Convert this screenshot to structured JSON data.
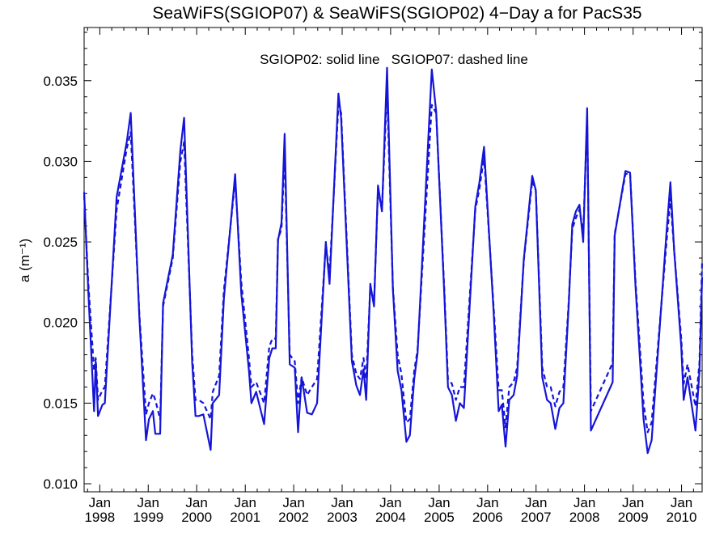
{
  "chart_data": {
    "type": "line",
    "title": "SeaWiFS(SGIOP07) & SeaWiFS(SGIOP02) 4−Day a for PacS35",
    "annotation": "SGIOP02: solid line   SGIOP07: dashed line",
    "ylabel": "a (m⁻¹)",
    "xlabel": "",
    "ylim": [
      0.0095,
      0.0383
    ],
    "xlim": [
      "1997-09-05",
      "2010-06-05"
    ],
    "yticks": [
      "0.010",
      "0.015",
      "0.020",
      "0.025",
      "0.030",
      "0.035"
    ],
    "ytick_values": [
      0.01,
      0.015,
      0.02,
      0.025,
      0.03,
      0.035
    ],
    "xticks": [
      {
        "month": "Jan",
        "year": "1998",
        "date": "1998-01-01"
      },
      {
        "month": "Jan",
        "year": "1999",
        "date": "1999-01-01"
      },
      {
        "month": "Jan",
        "year": "2000",
        "date": "2000-01-01"
      },
      {
        "month": "Jan",
        "year": "2001",
        "date": "2001-01-01"
      },
      {
        "month": "Jan",
        "year": "2002",
        "date": "2002-01-01"
      },
      {
        "month": "Jan",
        "year": "2003",
        "date": "2003-01-01"
      },
      {
        "month": "Jan",
        "year": "2004",
        "date": "2004-01-01"
      },
      {
        "month": "Jan",
        "year": "2005",
        "date": "2005-01-01"
      },
      {
        "month": "Jan",
        "year": "2006",
        "date": "2006-01-01"
      },
      {
        "month": "Jan",
        "year": "2007",
        "date": "2007-01-01"
      },
      {
        "month": "Jan",
        "year": "2008",
        "date": "2008-01-01"
      },
      {
        "month": "Jan",
        "year": "2009",
        "date": "2009-01-01"
      },
      {
        "month": "Jan",
        "year": "2010",
        "date": "2010-01-01"
      }
    ],
    "grid": false,
    "series": [
      {
        "name": "SGIOP02",
        "style": "solid",
        "color": "#1515d8",
        "points": [
          [
            "1997-09-05",
            0.0281
          ],
          [
            "1997-10-06",
            0.022
          ],
          [
            "1997-11-19",
            0.0145
          ],
          [
            "1997-12-01",
            0.0176
          ],
          [
            "1997-12-19",
            0.0142
          ],
          [
            "1998-01-21",
            0.0149
          ],
          [
            "1998-02-08",
            0.015
          ],
          [
            "1998-05-08",
            0.0278
          ],
          [
            "1998-07-23",
            0.0312
          ],
          [
            "1998-08-22",
            0.033
          ],
          [
            "1998-10-26",
            0.0203
          ],
          [
            "1998-12-15",
            0.0127
          ],
          [
            "1999-01-06",
            0.014
          ],
          [
            "1999-02-05",
            0.0145
          ],
          [
            "1999-02-23",
            0.0131
          ],
          [
            "1999-04-01",
            0.0131
          ],
          [
            "1999-04-23",
            0.0212
          ],
          [
            "1999-07-05",
            0.0242
          ],
          [
            "1999-08-31",
            0.0307
          ],
          [
            "1999-09-28",
            0.0327
          ],
          [
            "1999-11-28",
            0.0175
          ],
          [
            "1999-12-23",
            0.0142
          ],
          [
            "2000-01-16",
            0.0142
          ],
          [
            "2000-02-20",
            0.0143
          ],
          [
            "2000-04-15",
            0.0121
          ],
          [
            "2000-05-01",
            0.015
          ],
          [
            "2000-06-18",
            0.0155
          ],
          [
            "2000-07-24",
            0.0215
          ],
          [
            "2000-10-17",
            0.0292
          ],
          [
            "2000-12-02",
            0.0218
          ],
          [
            "2001-01-29",
            0.017
          ],
          [
            "2001-02-16",
            0.015
          ],
          [
            "2001-03-24",
            0.0157
          ],
          [
            "2001-05-23",
            0.0137
          ],
          [
            "2001-07-01",
            0.0178
          ],
          [
            "2001-07-24",
            0.0184
          ],
          [
            "2001-08-19",
            0.0184
          ],
          [
            "2001-09-05",
            0.0251
          ],
          [
            "2001-10-01",
            0.0262
          ],
          [
            "2001-10-25",
            0.0317
          ],
          [
            "2001-12-02",
            0.0174
          ],
          [
            "2002-01-09",
            0.0172
          ],
          [
            "2002-02-03",
            0.0132
          ],
          [
            "2002-03-02",
            0.0166
          ],
          [
            "2002-04-12",
            0.0144
          ],
          [
            "2002-05-18",
            0.0143
          ],
          [
            "2002-06-26",
            0.015
          ],
          [
            "2002-08-31",
            0.025
          ],
          [
            "2002-09-28",
            0.0224
          ],
          [
            "2002-12-04",
            0.0342
          ],
          [
            "2002-12-24",
            0.0327
          ],
          [
            "2003-03-15",
            0.0176
          ],
          [
            "2003-04-18",
            0.0161
          ],
          [
            "2003-05-15",
            0.0155
          ],
          [
            "2003-06-11",
            0.0171
          ],
          [
            "2003-07-01",
            0.0152
          ],
          [
            "2003-08-01",
            0.0224
          ],
          [
            "2003-08-29",
            0.021
          ],
          [
            "2003-09-28",
            0.0285
          ],
          [
            "2003-10-28",
            0.0269
          ],
          [
            "2003-12-05",
            0.0358
          ],
          [
            "2004-01-18",
            0.0221
          ],
          [
            "2004-02-23",
            0.017
          ],
          [
            "2004-03-23",
            0.0158
          ],
          [
            "2004-04-29",
            0.0126
          ],
          [
            "2004-05-25",
            0.013
          ],
          [
            "2004-06-27",
            0.0165
          ],
          [
            "2004-07-22",
            0.0181
          ],
          [
            "2004-11-06",
            0.0357
          ],
          [
            "2004-12-09",
            0.0331
          ],
          [
            "2005-02-10",
            0.0215
          ],
          [
            "2005-03-08",
            0.016
          ],
          [
            "2005-04-07",
            0.0155
          ],
          [
            "2005-05-07",
            0.0139
          ],
          [
            "2005-06-06",
            0.015
          ],
          [
            "2005-07-06",
            0.0147
          ],
          [
            "2005-09-30",
            0.0272
          ],
          [
            "2005-10-31",
            0.0287
          ],
          [
            "2005-12-05",
            0.0309
          ],
          [
            "2006-02-15",
            0.0207
          ],
          [
            "2006-03-25",
            0.0145
          ],
          [
            "2006-04-18",
            0.0149
          ],
          [
            "2006-05-16",
            0.0123
          ],
          [
            "2006-06-13",
            0.0152
          ],
          [
            "2006-07-16",
            0.0155
          ],
          [
            "2006-08-11",
            0.0167
          ],
          [
            "2006-09-30",
            0.0239
          ],
          [
            "2006-12-03",
            0.0291
          ],
          [
            "2006-12-30",
            0.0282
          ],
          [
            "2007-02-17",
            0.0166
          ],
          [
            "2007-03-25",
            0.0152
          ],
          [
            "2007-04-21",
            0.015
          ],
          [
            "2007-05-26",
            0.0134
          ],
          [
            "2007-06-26",
            0.0147
          ],
          [
            "2007-07-26",
            0.015
          ],
          [
            "2007-09-04",
            0.0211
          ],
          [
            "2007-10-01",
            0.0261
          ],
          [
            "2007-10-28",
            0.0269
          ],
          [
            "2007-11-24",
            0.0273
          ],
          [
            "2007-12-22",
            0.025
          ],
          [
            "2008-01-21",
            0.0333
          ],
          [
            "2008-02-18",
            0.0133
          ],
          [
            "2008-07-31",
            0.0163
          ],
          [
            "2008-08-15",
            0.0254
          ],
          [
            "2008-11-04",
            0.0294
          ],
          [
            "2008-12-09",
            0.0293
          ],
          [
            "2009-01-19",
            0.0223
          ],
          [
            "2009-03-21",
            0.014
          ],
          [
            "2009-04-21",
            0.0119
          ],
          [
            "2009-05-21",
            0.0127
          ],
          [
            "2009-09-10",
            0.0256
          ],
          [
            "2009-10-09",
            0.0287
          ],
          [
            "2009-11-06",
            0.0245
          ],
          [
            "2009-12-30",
            0.0185
          ],
          [
            "2010-01-17",
            0.0152
          ],
          [
            "2010-02-15",
            0.0166
          ],
          [
            "2010-04-16",
            0.0133
          ],
          [
            "2010-05-16",
            0.017
          ],
          [
            "2010-06-05",
            0.0228
          ]
        ]
      },
      {
        "name": "SGIOP07",
        "style": "dashed",
        "color": "#1515d8",
        "points": [
          [
            "1997-09-05",
            0.0279
          ],
          [
            "1997-10-06",
            0.0225
          ],
          [
            "1997-11-19",
            0.017
          ],
          [
            "1997-12-01",
            0.0178
          ],
          [
            "1997-12-19",
            0.0152
          ],
          [
            "1998-01-21",
            0.0158
          ],
          [
            "1998-02-08",
            0.016
          ],
          [
            "1998-05-08",
            0.027
          ],
          [
            "1998-07-23",
            0.0308
          ],
          [
            "1998-08-22",
            0.0318
          ],
          [
            "1998-10-26",
            0.0205
          ],
          [
            "1998-12-15",
            0.0143
          ],
          [
            "1999-01-06",
            0.015
          ],
          [
            "1999-02-05",
            0.0156
          ],
          [
            "1999-02-23",
            0.0152
          ],
          [
            "1999-04-01",
            0.014
          ],
          [
            "1999-04-23",
            0.021
          ],
          [
            "1999-07-05",
            0.024
          ],
          [
            "1999-08-31",
            0.03
          ],
          [
            "1999-09-28",
            0.0312
          ],
          [
            "1999-11-28",
            0.018
          ],
          [
            "1999-12-23",
            0.0152
          ],
          [
            "2000-01-16",
            0.0152
          ],
          [
            "2000-02-20",
            0.015
          ],
          [
            "2000-04-15",
            0.014
          ],
          [
            "2000-05-01",
            0.0157
          ],
          [
            "2000-06-18",
            0.0167
          ],
          [
            "2000-07-24",
            0.022
          ],
          [
            "2000-10-17",
            0.0288
          ],
          [
            "2000-12-02",
            0.0225
          ],
          [
            "2001-01-29",
            0.0178
          ],
          [
            "2001-02-16",
            0.016
          ],
          [
            "2001-03-24",
            0.0163
          ],
          [
            "2001-05-23",
            0.015
          ],
          [
            "2001-07-01",
            0.0185
          ],
          [
            "2001-07-24",
            0.019
          ],
          [
            "2001-08-19",
            0.019
          ],
          [
            "2001-09-05",
            0.0252
          ],
          [
            "2001-10-01",
            0.0258
          ],
          [
            "2001-10-25",
            0.0305
          ],
          [
            "2001-12-02",
            0.018
          ],
          [
            "2002-01-09",
            0.0176
          ],
          [
            "2002-02-03",
            0.015
          ],
          [
            "2002-03-02",
            0.0166
          ],
          [
            "2002-04-12",
            0.0155
          ],
          [
            "2002-05-18",
            0.016
          ],
          [
            "2002-06-26",
            0.0165
          ],
          [
            "2002-08-31",
            0.0248
          ],
          [
            "2002-09-28",
            0.023
          ],
          [
            "2002-12-04",
            0.0335
          ],
          [
            "2002-12-24",
            0.033
          ],
          [
            "2003-03-15",
            0.018
          ],
          [
            "2003-04-18",
            0.0168
          ],
          [
            "2003-05-15",
            0.0165
          ],
          [
            "2003-06-11",
            0.0178
          ],
          [
            "2003-07-01",
            0.0165
          ],
          [
            "2003-08-01",
            0.0222
          ],
          [
            "2003-08-29",
            0.0212
          ],
          [
            "2003-09-28",
            0.0282
          ],
          [
            "2003-10-28",
            0.027
          ],
          [
            "2003-12-05",
            0.0345
          ],
          [
            "2004-01-18",
            0.0222
          ],
          [
            "2004-02-23",
            0.018
          ],
          [
            "2004-03-23",
            0.0168
          ],
          [
            "2004-04-29",
            0.0138
          ],
          [
            "2004-05-25",
            0.014
          ],
          [
            "2004-06-27",
            0.017
          ],
          [
            "2004-07-22",
            0.0183
          ],
          [
            "2004-11-06",
            0.0335
          ],
          [
            "2004-12-09",
            0.033
          ],
          [
            "2005-02-10",
            0.0218
          ],
          [
            "2005-03-08",
            0.0165
          ],
          [
            "2005-04-07",
            0.0162
          ],
          [
            "2005-05-07",
            0.0152
          ],
          [
            "2005-06-06",
            0.016
          ],
          [
            "2005-07-06",
            0.016
          ],
          [
            "2005-09-30",
            0.027
          ],
          [
            "2005-10-31",
            0.0283
          ],
          [
            "2005-12-05",
            0.0303
          ],
          [
            "2006-02-15",
            0.021
          ],
          [
            "2006-03-25",
            0.0158
          ],
          [
            "2006-04-18",
            0.0158
          ],
          [
            "2006-05-16",
            0.0135
          ],
          [
            "2006-06-13",
            0.016
          ],
          [
            "2006-07-16",
            0.0163
          ],
          [
            "2006-08-11",
            0.0172
          ],
          [
            "2006-09-30",
            0.0238
          ],
          [
            "2006-12-03",
            0.0288
          ],
          [
            "2006-12-30",
            0.0282
          ],
          [
            "2007-02-17",
            0.0172
          ],
          [
            "2007-03-25",
            0.016
          ],
          [
            "2007-04-21",
            0.016
          ],
          [
            "2007-05-26",
            0.0148
          ],
          [
            "2007-06-26",
            0.0157
          ],
          [
            "2007-07-26",
            0.016
          ],
          [
            "2007-09-04",
            0.0213
          ],
          [
            "2007-10-01",
            0.0258
          ],
          [
            "2007-10-28",
            0.0265
          ],
          [
            "2007-11-24",
            0.027
          ],
          [
            "2007-12-22",
            0.0255
          ],
          [
            "2008-01-21",
            0.0328
          ],
          [
            "2008-02-18",
            0.0145
          ],
          [
            "2008-07-31",
            0.0175
          ],
          [
            "2008-08-15",
            0.0255
          ],
          [
            "2008-11-04",
            0.0292
          ],
          [
            "2008-12-09",
            0.0293
          ],
          [
            "2009-01-19",
            0.0226
          ],
          [
            "2009-03-21",
            0.015
          ],
          [
            "2009-04-21",
            0.0132
          ],
          [
            "2009-05-21",
            0.0138
          ],
          [
            "2009-09-10",
            0.025
          ],
          [
            "2009-10-09",
            0.0277
          ],
          [
            "2009-11-06",
            0.0245
          ],
          [
            "2009-12-30",
            0.019
          ],
          [
            "2010-01-17",
            0.0162
          ],
          [
            "2010-02-15",
            0.0174
          ],
          [
            "2010-04-16",
            0.0148
          ],
          [
            "2010-05-16",
            0.0175
          ],
          [
            "2010-06-05",
            0.0238
          ]
        ]
      }
    ]
  }
}
